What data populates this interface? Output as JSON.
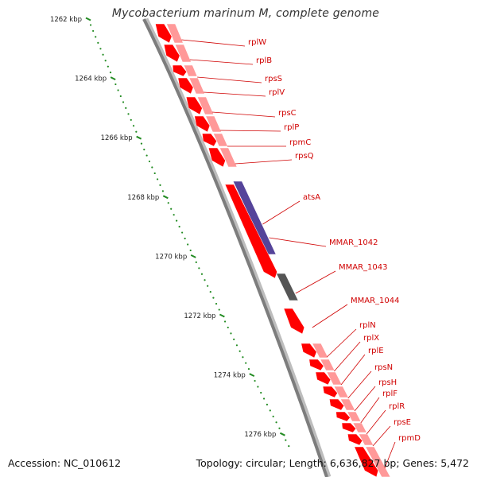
{
  "title": "Mycobacterium marinum M, complete genome",
  "accession": "Accession: NC_010612",
  "summary": "Topology: circular; Length: 6,636,827 bp; Genes: 5,472",
  "colors": {
    "background": "#ffffff",
    "backbone": "#8a8a8a",
    "cds_forward": "#ff0000",
    "cds_reverse": "#ff9999",
    "rrna": "#55449a",
    "trna": "#555555",
    "label": "#d00000",
    "tick": "#228b22"
  },
  "scale": {
    "unit": "kbp",
    "labels": [
      {
        "kbp": 1262,
        "text": "1262 kbp"
      },
      {
        "kbp": 1264,
        "text": "1264 kbp"
      },
      {
        "kbp": 1266,
        "text": "1266 kbp"
      },
      {
        "kbp": 1268,
        "text": "1268 kbp"
      },
      {
        "kbp": 1270,
        "text": "1270 kbp"
      },
      {
        "kbp": 1272,
        "text": "1272 kbp"
      },
      {
        "kbp": 1274,
        "text": "1274 kbp"
      },
      {
        "kbp": 1276,
        "text": "1276 kbp"
      }
    ]
  },
  "genes": [
    {
      "name": "rplW",
      "strand": "-",
      "type": "CDS"
    },
    {
      "name": "rplB",
      "strand": "-",
      "type": "CDS"
    },
    {
      "name": "rpsS",
      "strand": "-",
      "type": "CDS"
    },
    {
      "name": "rplV",
      "strand": "-",
      "type": "CDS"
    },
    {
      "name": "rpsC",
      "strand": "-",
      "type": "CDS"
    },
    {
      "name": "rplP",
      "strand": "-",
      "type": "CDS"
    },
    {
      "name": "rpmC",
      "strand": "-",
      "type": "CDS"
    },
    {
      "name": "rpsQ",
      "strand": "-",
      "type": "CDS"
    },
    {
      "name": "atsA",
      "strand": "-",
      "type": "rRNA"
    },
    {
      "name": "MMAR_1042",
      "strand": "+",
      "type": "CDS"
    },
    {
      "name": "MMAR_1043",
      "strand": "-",
      "type": "tRNA"
    },
    {
      "name": "MMAR_1044",
      "strand": "+",
      "type": "CDS"
    },
    {
      "name": "rplN",
      "strand": "-",
      "type": "CDS"
    },
    {
      "name": "rplX",
      "strand": "-",
      "type": "CDS"
    },
    {
      "name": "rplE",
      "strand": "-",
      "type": "CDS"
    },
    {
      "name": "rpsN",
      "strand": "-",
      "type": "CDS"
    },
    {
      "name": "rpsH",
      "strand": "-",
      "type": "CDS"
    },
    {
      "name": "rplF",
      "strand": "-",
      "type": "CDS"
    },
    {
      "name": "rplR",
      "strand": "-",
      "type": "CDS"
    },
    {
      "name": "rpsE",
      "strand": "-",
      "type": "CDS"
    },
    {
      "name": "rpmD",
      "strand": "-",
      "type": "CDS"
    }
  ]
}
